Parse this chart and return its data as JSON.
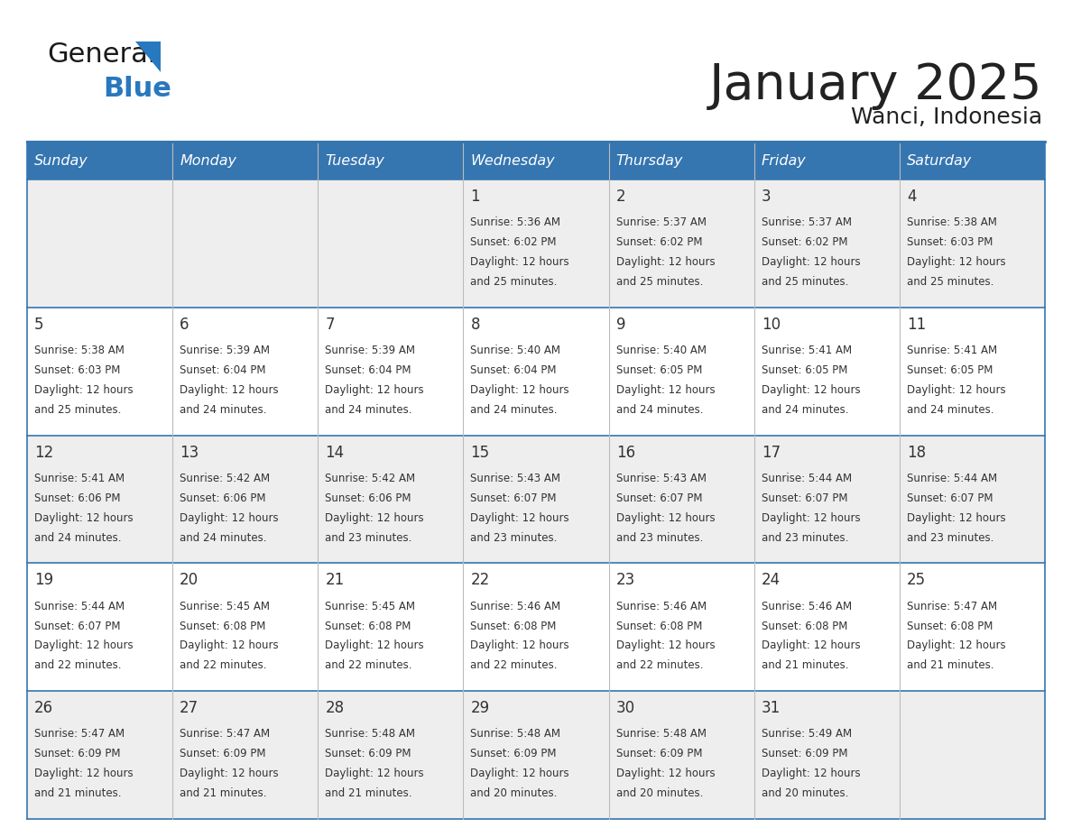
{
  "title": "January 2025",
  "subtitle": "Wanci, Indonesia",
  "days_of_week": [
    "Sunday",
    "Monday",
    "Tuesday",
    "Wednesday",
    "Thursday",
    "Friday",
    "Saturday"
  ],
  "header_bg_color": "#3575b0",
  "header_text_color": "#ffffff",
  "cell_bg_row0": "#eeeeee",
  "cell_bg_row1": "#ffffff",
  "cell_border_color": "#3575b0",
  "grid_line_color": "#bbbbbb",
  "text_color": "#333333",
  "title_color": "#222222",
  "calendar_data": [
    [
      null,
      null,
      null,
      {
        "day": 1,
        "sunrise": "5:36 AM",
        "sunset": "6:02 PM",
        "daylight_hrs": 12,
        "daylight_min": 25
      },
      {
        "day": 2,
        "sunrise": "5:37 AM",
        "sunset": "6:02 PM",
        "daylight_hrs": 12,
        "daylight_min": 25
      },
      {
        "day": 3,
        "sunrise": "5:37 AM",
        "sunset": "6:02 PM",
        "daylight_hrs": 12,
        "daylight_min": 25
      },
      {
        "day": 4,
        "sunrise": "5:38 AM",
        "sunset": "6:03 PM",
        "daylight_hrs": 12,
        "daylight_min": 25
      }
    ],
    [
      {
        "day": 5,
        "sunrise": "5:38 AM",
        "sunset": "6:03 PM",
        "daylight_hrs": 12,
        "daylight_min": 25
      },
      {
        "day": 6,
        "sunrise": "5:39 AM",
        "sunset": "6:04 PM",
        "daylight_hrs": 12,
        "daylight_min": 24
      },
      {
        "day": 7,
        "sunrise": "5:39 AM",
        "sunset": "6:04 PM",
        "daylight_hrs": 12,
        "daylight_min": 24
      },
      {
        "day": 8,
        "sunrise": "5:40 AM",
        "sunset": "6:04 PM",
        "daylight_hrs": 12,
        "daylight_min": 24
      },
      {
        "day": 9,
        "sunrise": "5:40 AM",
        "sunset": "6:05 PM",
        "daylight_hrs": 12,
        "daylight_min": 24
      },
      {
        "day": 10,
        "sunrise": "5:41 AM",
        "sunset": "6:05 PM",
        "daylight_hrs": 12,
        "daylight_min": 24
      },
      {
        "day": 11,
        "sunrise": "5:41 AM",
        "sunset": "6:05 PM",
        "daylight_hrs": 12,
        "daylight_min": 24
      }
    ],
    [
      {
        "day": 12,
        "sunrise": "5:41 AM",
        "sunset": "6:06 PM",
        "daylight_hrs": 12,
        "daylight_min": 24
      },
      {
        "day": 13,
        "sunrise": "5:42 AM",
        "sunset": "6:06 PM",
        "daylight_hrs": 12,
        "daylight_min": 24
      },
      {
        "day": 14,
        "sunrise": "5:42 AM",
        "sunset": "6:06 PM",
        "daylight_hrs": 12,
        "daylight_min": 23
      },
      {
        "day": 15,
        "sunrise": "5:43 AM",
        "sunset": "6:07 PM",
        "daylight_hrs": 12,
        "daylight_min": 23
      },
      {
        "day": 16,
        "sunrise": "5:43 AM",
        "sunset": "6:07 PM",
        "daylight_hrs": 12,
        "daylight_min": 23
      },
      {
        "day": 17,
        "sunrise": "5:44 AM",
        "sunset": "6:07 PM",
        "daylight_hrs": 12,
        "daylight_min": 23
      },
      {
        "day": 18,
        "sunrise": "5:44 AM",
        "sunset": "6:07 PM",
        "daylight_hrs": 12,
        "daylight_min": 23
      }
    ],
    [
      {
        "day": 19,
        "sunrise": "5:44 AM",
        "sunset": "6:07 PM",
        "daylight_hrs": 12,
        "daylight_min": 22
      },
      {
        "day": 20,
        "sunrise": "5:45 AM",
        "sunset": "6:08 PM",
        "daylight_hrs": 12,
        "daylight_min": 22
      },
      {
        "day": 21,
        "sunrise": "5:45 AM",
        "sunset": "6:08 PM",
        "daylight_hrs": 12,
        "daylight_min": 22
      },
      {
        "day": 22,
        "sunrise": "5:46 AM",
        "sunset": "6:08 PM",
        "daylight_hrs": 12,
        "daylight_min": 22
      },
      {
        "day": 23,
        "sunrise": "5:46 AM",
        "sunset": "6:08 PM",
        "daylight_hrs": 12,
        "daylight_min": 22
      },
      {
        "day": 24,
        "sunrise": "5:46 AM",
        "sunset": "6:08 PM",
        "daylight_hrs": 12,
        "daylight_min": 21
      },
      {
        "day": 25,
        "sunrise": "5:47 AM",
        "sunset": "6:08 PM",
        "daylight_hrs": 12,
        "daylight_min": 21
      }
    ],
    [
      {
        "day": 26,
        "sunrise": "5:47 AM",
        "sunset": "6:09 PM",
        "daylight_hrs": 12,
        "daylight_min": 21
      },
      {
        "day": 27,
        "sunrise": "5:47 AM",
        "sunset": "6:09 PM",
        "daylight_hrs": 12,
        "daylight_min": 21
      },
      {
        "day": 28,
        "sunrise": "5:48 AM",
        "sunset": "6:09 PM",
        "daylight_hrs": 12,
        "daylight_min": 21
      },
      {
        "day": 29,
        "sunrise": "5:48 AM",
        "sunset": "6:09 PM",
        "daylight_hrs": 12,
        "daylight_min": 20
      },
      {
        "day": 30,
        "sunrise": "5:48 AM",
        "sunset": "6:09 PM",
        "daylight_hrs": 12,
        "daylight_min": 20
      },
      {
        "day": 31,
        "sunrise": "5:49 AM",
        "sunset": "6:09 PM",
        "daylight_hrs": 12,
        "daylight_min": 20
      },
      null
    ]
  ],
  "logo_general_color": "#1a1a1a",
  "logo_blue_color": "#2878be",
  "logo_triangle_color": "#2878be"
}
